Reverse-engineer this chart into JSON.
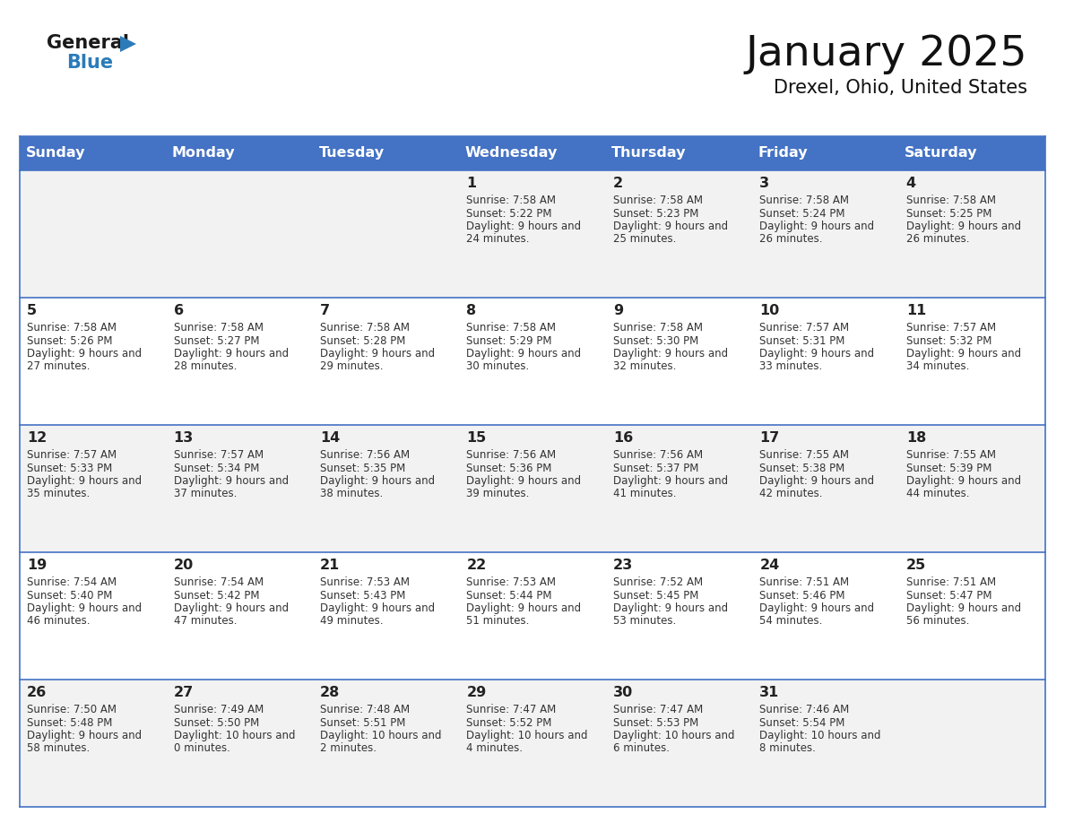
{
  "title": "January 2025",
  "subtitle": "Drexel, Ohio, United States",
  "header_color": "#4472C4",
  "header_text_color": "#FFFFFF",
  "cell_bg_odd": "#F2F2F2",
  "cell_bg_even": "#FFFFFF",
  "line_color": "#4472C4",
  "text_color": "#333333",
  "day_headers": [
    "Sunday",
    "Monday",
    "Tuesday",
    "Wednesday",
    "Thursday",
    "Friday",
    "Saturday"
  ],
  "weeks": [
    [
      {
        "day": "",
        "sunrise": "",
        "sunset": "",
        "daylight": ""
      },
      {
        "day": "",
        "sunrise": "",
        "sunset": "",
        "daylight": ""
      },
      {
        "day": "",
        "sunrise": "",
        "sunset": "",
        "daylight": ""
      },
      {
        "day": "1",
        "sunrise": "7:58 AM",
        "sunset": "5:22 PM",
        "daylight": "9 hours and 24 minutes."
      },
      {
        "day": "2",
        "sunrise": "7:58 AM",
        "sunset": "5:23 PM",
        "daylight": "9 hours and 25 minutes."
      },
      {
        "day": "3",
        "sunrise": "7:58 AM",
        "sunset": "5:24 PM",
        "daylight": "9 hours and 26 minutes."
      },
      {
        "day": "4",
        "sunrise": "7:58 AM",
        "sunset": "5:25 PM",
        "daylight": "9 hours and 26 minutes."
      }
    ],
    [
      {
        "day": "5",
        "sunrise": "7:58 AM",
        "sunset": "5:26 PM",
        "daylight": "9 hours and 27 minutes."
      },
      {
        "day": "6",
        "sunrise": "7:58 AM",
        "sunset": "5:27 PM",
        "daylight": "9 hours and 28 minutes."
      },
      {
        "day": "7",
        "sunrise": "7:58 AM",
        "sunset": "5:28 PM",
        "daylight": "9 hours and 29 minutes."
      },
      {
        "day": "8",
        "sunrise": "7:58 AM",
        "sunset": "5:29 PM",
        "daylight": "9 hours and 30 minutes."
      },
      {
        "day": "9",
        "sunrise": "7:58 AM",
        "sunset": "5:30 PM",
        "daylight": "9 hours and 32 minutes."
      },
      {
        "day": "10",
        "sunrise": "7:57 AM",
        "sunset": "5:31 PM",
        "daylight": "9 hours and 33 minutes."
      },
      {
        "day": "11",
        "sunrise": "7:57 AM",
        "sunset": "5:32 PM",
        "daylight": "9 hours and 34 minutes."
      }
    ],
    [
      {
        "day": "12",
        "sunrise": "7:57 AM",
        "sunset": "5:33 PM",
        "daylight": "9 hours and 35 minutes."
      },
      {
        "day": "13",
        "sunrise": "7:57 AM",
        "sunset": "5:34 PM",
        "daylight": "9 hours and 37 minutes."
      },
      {
        "day": "14",
        "sunrise": "7:56 AM",
        "sunset": "5:35 PM",
        "daylight": "9 hours and 38 minutes."
      },
      {
        "day": "15",
        "sunrise": "7:56 AM",
        "sunset": "5:36 PM",
        "daylight": "9 hours and 39 minutes."
      },
      {
        "day": "16",
        "sunrise": "7:56 AM",
        "sunset": "5:37 PM",
        "daylight": "9 hours and 41 minutes."
      },
      {
        "day": "17",
        "sunrise": "7:55 AM",
        "sunset": "5:38 PM",
        "daylight": "9 hours and 42 minutes."
      },
      {
        "day": "18",
        "sunrise": "7:55 AM",
        "sunset": "5:39 PM",
        "daylight": "9 hours and 44 minutes."
      }
    ],
    [
      {
        "day": "19",
        "sunrise": "7:54 AM",
        "sunset": "5:40 PM",
        "daylight": "9 hours and 46 minutes."
      },
      {
        "day": "20",
        "sunrise": "7:54 AM",
        "sunset": "5:42 PM",
        "daylight": "9 hours and 47 minutes."
      },
      {
        "day": "21",
        "sunrise": "7:53 AM",
        "sunset": "5:43 PM",
        "daylight": "9 hours and 49 minutes."
      },
      {
        "day": "22",
        "sunrise": "7:53 AM",
        "sunset": "5:44 PM",
        "daylight": "9 hours and 51 minutes."
      },
      {
        "day": "23",
        "sunrise": "7:52 AM",
        "sunset": "5:45 PM",
        "daylight": "9 hours and 53 minutes."
      },
      {
        "day": "24",
        "sunrise": "7:51 AM",
        "sunset": "5:46 PM",
        "daylight": "9 hours and 54 minutes."
      },
      {
        "day": "25",
        "sunrise": "7:51 AM",
        "sunset": "5:47 PM",
        "daylight": "9 hours and 56 minutes."
      }
    ],
    [
      {
        "day": "26",
        "sunrise": "7:50 AM",
        "sunset": "5:48 PM",
        "daylight": "9 hours and 58 minutes."
      },
      {
        "day": "27",
        "sunrise": "7:49 AM",
        "sunset": "5:50 PM",
        "daylight": "10 hours and 0 minutes."
      },
      {
        "day": "28",
        "sunrise": "7:48 AM",
        "sunset": "5:51 PM",
        "daylight": "10 hours and 2 minutes."
      },
      {
        "day": "29",
        "sunrise": "7:47 AM",
        "sunset": "5:52 PM",
        "daylight": "10 hours and 4 minutes."
      },
      {
        "day": "30",
        "sunrise": "7:47 AM",
        "sunset": "5:53 PM",
        "daylight": "10 hours and 6 minutes."
      },
      {
        "day": "31",
        "sunrise": "7:46 AM",
        "sunset": "5:54 PM",
        "daylight": "10 hours and 8 minutes."
      },
      {
        "day": "",
        "sunrise": "",
        "sunset": "",
        "daylight": ""
      }
    ]
  ],
  "logo_general_color": "#1a1a1a",
  "logo_blue_color": "#2B7BB9",
  "logo_triangle_color": "#2B7BB9"
}
